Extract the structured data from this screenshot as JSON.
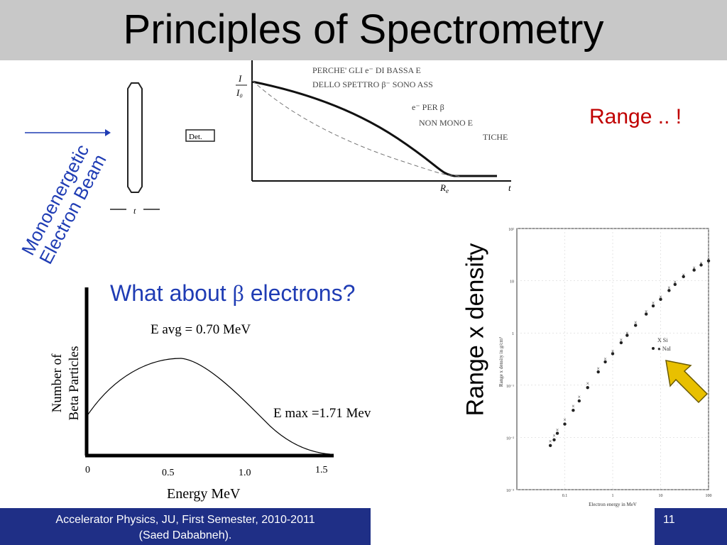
{
  "slide": {
    "title": "Principles of Spectrometry",
    "range_note": "Range .. !",
    "beam_label_line1": "Monoenergetic",
    "beam_label_line2": "Electron Beam",
    "question_prefix": "What about ",
    "question_symbol": "β",
    "question_suffix": " electrons?",
    "range_axis_label": "Range x density",
    "footer_text_line1": "Accelerator Physics, JU, First Semester, 2010-2011",
    "footer_text_line2": "(Saed Dababneh).",
    "page_number": "11",
    "colors": {
      "title_bar": "#c8c8c8",
      "accent_red": "#c00000",
      "accent_blue": "#1f3cb4",
      "footer": "#1f2f86",
      "arrow": "#e8c000"
    }
  },
  "transmission_sketch": {
    "det_label": "Det.",
    "thickness_label": "t",
    "y_label_num": "I",
    "y_label_den": "I₀",
    "x_label": "t",
    "re_label": "R",
    "re_sub": "e",
    "handwritten_lines": [
      "PERCHE' GLI e⁻ DI BASSA E",
      "DELLO SPETTRO β⁻ SONO ASS",
      "e⁻ PER β",
      "NON MONO E",
      "TICHE"
    ]
  },
  "beta_spectrum": {
    "y_label_line1": "Number of",
    "y_label_line2": "Beta Particles",
    "e_avg": "E avg = 0.70 MeV",
    "e_max": "E max =1.71 Mev",
    "x_label": "Energy MeV",
    "ticks": [
      "0",
      "0.5",
      "1.0",
      "1.5"
    ]
  },
  "chart_data": {
    "type": "scatter",
    "title": "",
    "xlabel": "Electron energy in MeV",
    "ylabel": "Range x density in g/cm²",
    "x_scale": "log",
    "y_scale": "log",
    "xlim": [
      0.01,
      100
    ],
    "ylim": [
      0.001,
      100
    ],
    "x_ticks": [
      "0.1",
      "1",
      "10",
      "100"
    ],
    "y_ticks": [
      "10⁻³",
      "10⁻²",
      "10⁻¹",
      "1",
      "10",
      "10²"
    ],
    "legend": [
      "X Si",
      "● NaI"
    ],
    "legend_position": "right",
    "series": [
      {
        "name": "Si",
        "marker": "x",
        "x": [
          0.05,
          0.06,
          0.07,
          0.1,
          0.15,
          0.2,
          0.3,
          0.5,
          0.7,
          1.0,
          1.5,
          2,
          3,
          5,
          7,
          10,
          15,
          20,
          30,
          50,
          70,
          100
        ],
        "y": [
          0.0085,
          0.011,
          0.014,
          0.022,
          0.04,
          0.06,
          0.11,
          0.21,
          0.32,
          0.45,
          0.75,
          1.0,
          1.6,
          2.6,
          3.8,
          5.0,
          7.5,
          9.5,
          13,
          18,
          22,
          26
        ]
      },
      {
        "name": "NaI",
        "marker": "dot",
        "x": [
          0.05,
          0.06,
          0.07,
          0.1,
          0.15,
          0.2,
          0.3,
          0.5,
          0.7,
          1.0,
          1.5,
          2,
          3,
          5,
          7,
          10,
          15,
          20,
          30,
          50,
          70,
          100
        ],
        "y": [
          0.007,
          0.009,
          0.012,
          0.018,
          0.033,
          0.05,
          0.09,
          0.18,
          0.28,
          0.4,
          0.65,
          0.9,
          1.4,
          2.3,
          3.3,
          4.4,
          6.5,
          8.5,
          12,
          16,
          20,
          24
        ]
      }
    ]
  }
}
